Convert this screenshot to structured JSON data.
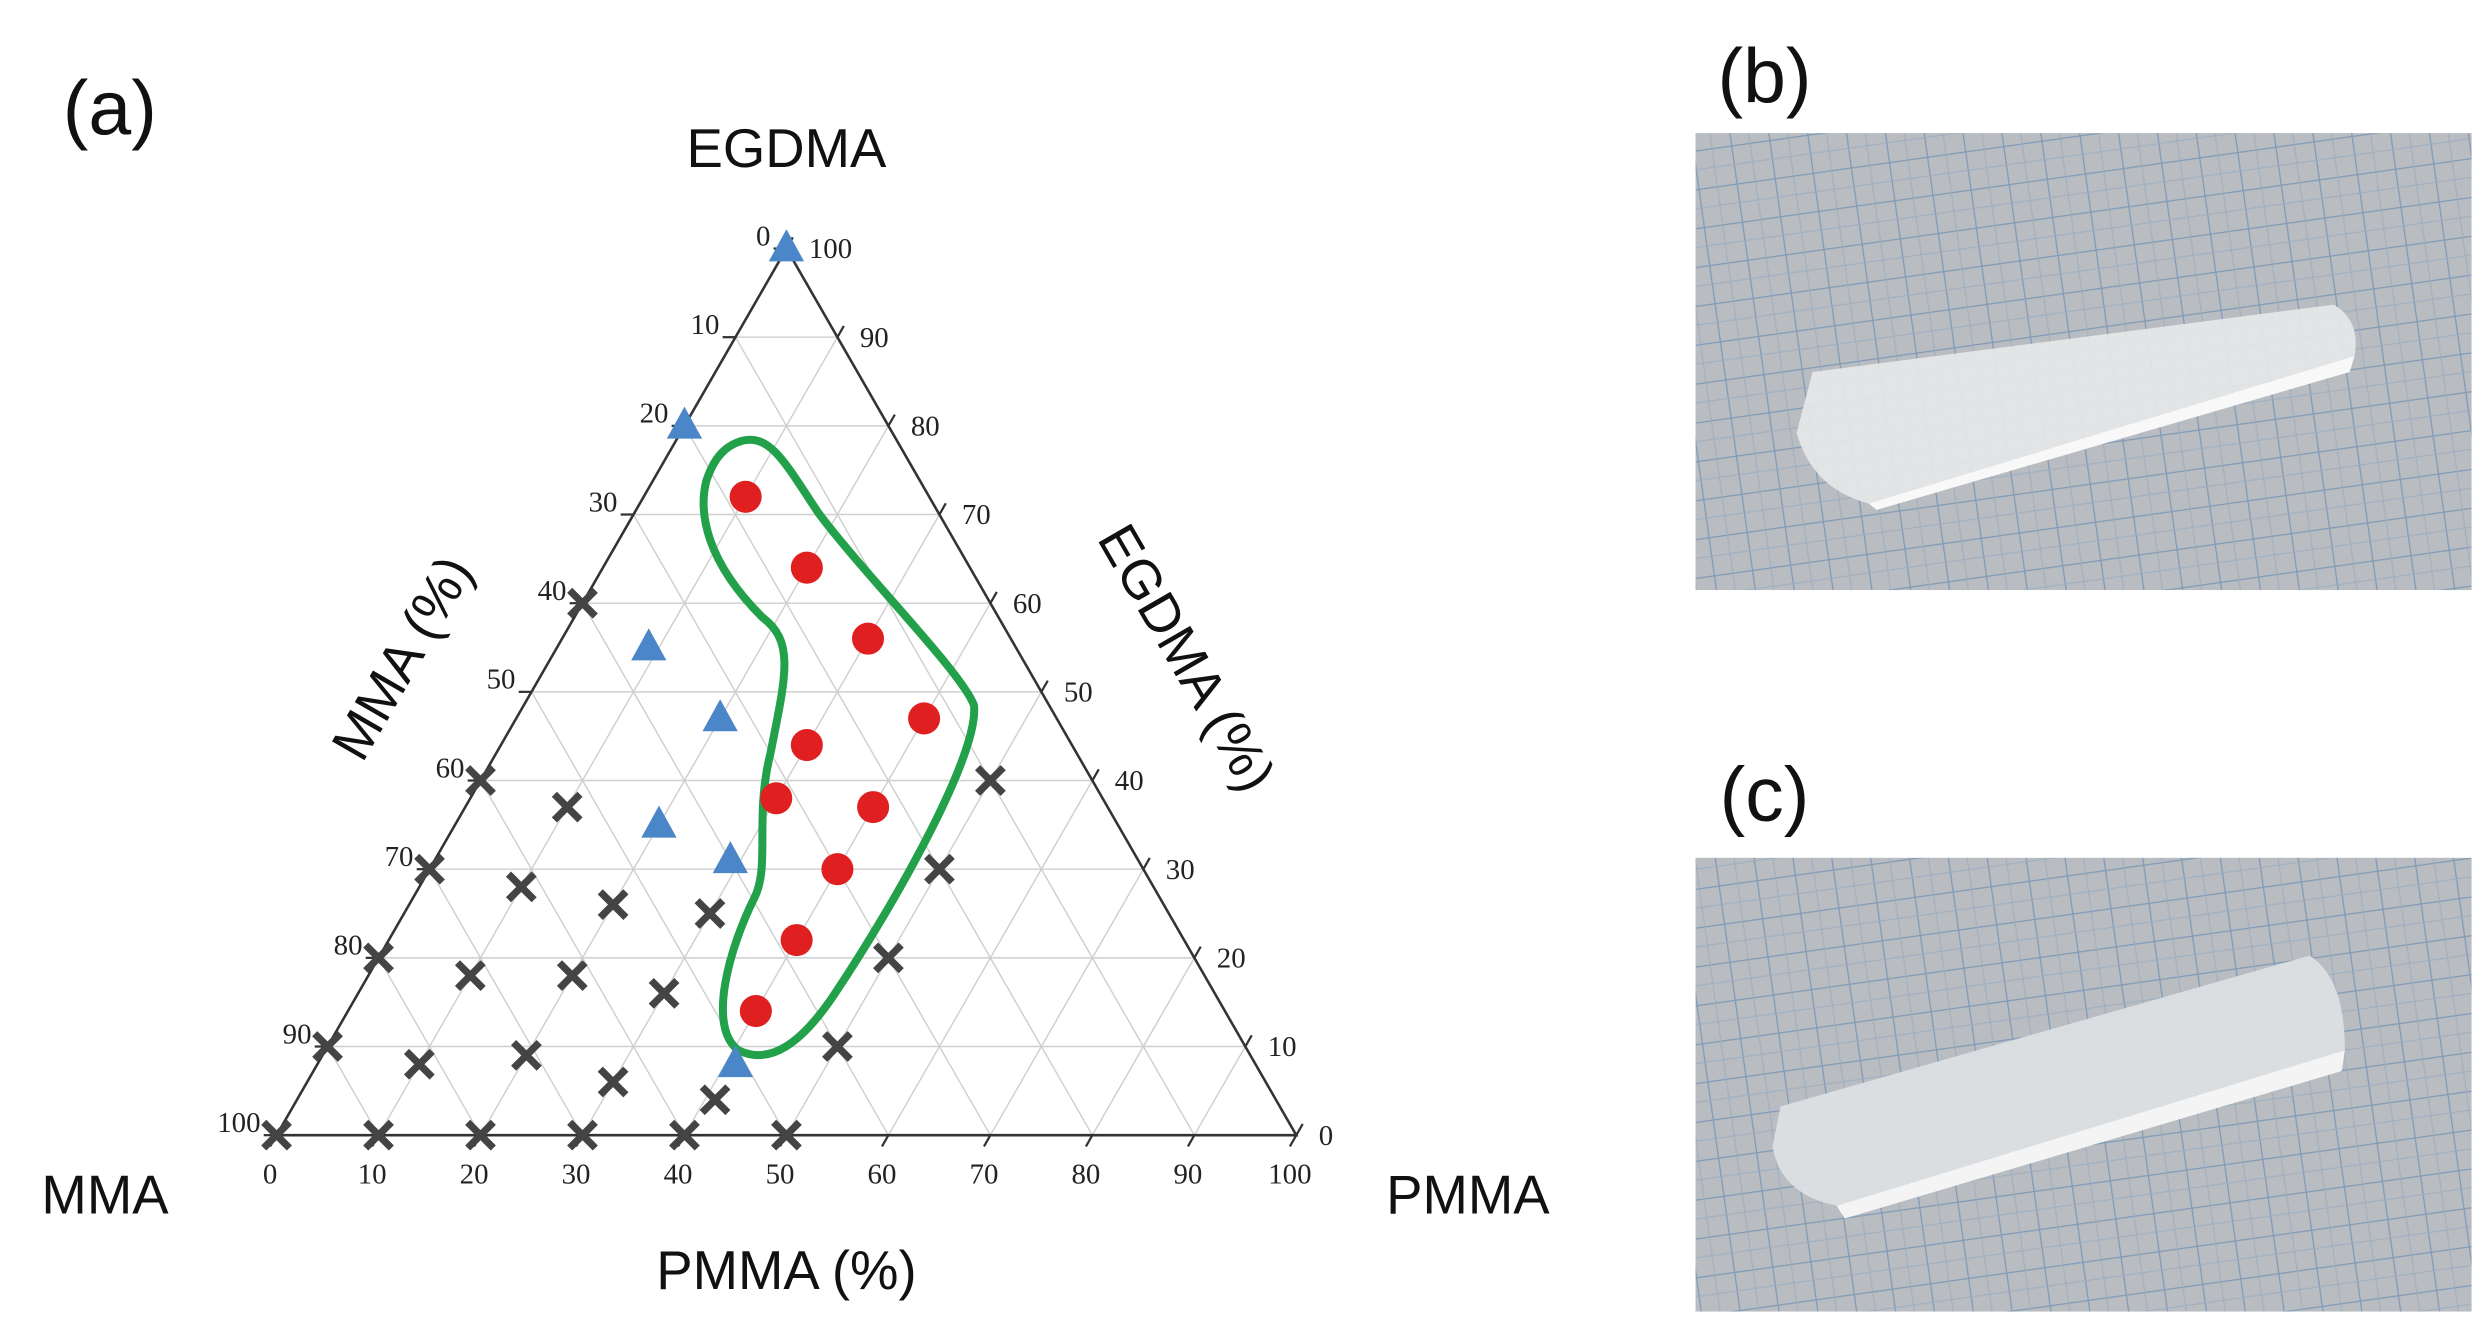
{
  "chart_data": {
    "type": "ternary",
    "panel_label": "(a)",
    "corner_labels": {
      "top": "EGDMA",
      "left": "MMA",
      "right": "PMMA"
    },
    "axis_titles": {
      "bottom": "PMMA (%)",
      "left": "MMA (%)",
      "right": "EGDMA (%)"
    },
    "pmma_ticks": [
      0,
      10,
      20,
      30,
      40,
      50,
      60,
      70,
      80,
      90,
      100
    ],
    "mma_ticks": [
      0,
      10,
      20,
      30,
      40,
      50,
      60,
      70,
      80,
      90,
      100
    ],
    "egdma_ticks": [
      0,
      10,
      20,
      30,
      40,
      50,
      60,
      70,
      80,
      90,
      100
    ],
    "grid": true,
    "series": [
      {
        "marker": "x",
        "color": "#444444",
        "pmma": [
          0,
          10,
          20,
          30,
          40,
          50,
          0,
          10,
          20,
          30,
          41,
          0,
          10,
          20,
          30,
          0,
          10,
          20,
          30,
          0,
          10,
          0,
          50,
          50,
          50,
          50
        ],
        "egdma": [
          0,
          0,
          0,
          0,
          0,
          0,
          10,
          8,
          9,
          6,
          4,
          20,
          18,
          18,
          16,
          30,
          28,
          26,
          25,
          40,
          37,
          60,
          10,
          20,
          30,
          40
        ]
      },
      {
        "marker": "triangle",
        "color": "#4a86c8",
        "pmma": [
          0,
          0,
          9,
          20,
          20,
          29,
          41
        ],
        "egdma": [
          100,
          80,
          55,
          47,
          35,
          31,
          8
        ]
      },
      {
        "marker": "circle",
        "color": "#e02020",
        "pmma": [
          10,
          20,
          30,
          40,
          30,
          40,
          30,
          40,
          40,
          40
        ],
        "egdma": [
          72,
          64,
          56,
          47,
          44,
          37,
          38,
          30,
          22,
          14
        ]
      }
    ]
  },
  "photos": [
    {
      "label": "(b)"
    },
    {
      "label": "(c)"
    }
  ]
}
